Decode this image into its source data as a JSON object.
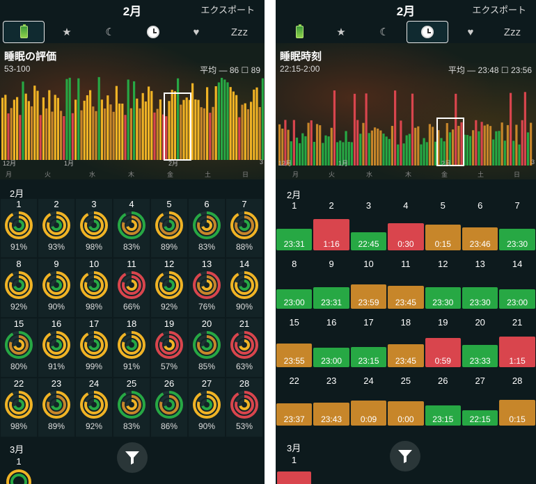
{
  "left": {
    "header": {
      "month": "2月",
      "export": "エクスポート"
    },
    "tabs": [
      {
        "name": "battery-icon",
        "label": ""
      },
      {
        "name": "star-icon",
        "label": "★"
      },
      {
        "name": "moon-icon",
        "label": "☾"
      },
      {
        "name": "clock-icon",
        "label": ""
      },
      {
        "name": "heart-icon",
        "label": "♥"
      },
      {
        "name": "zzz-icon",
        "label": "Zzz"
      }
    ],
    "chart": {
      "title": "睡眠の評価",
      "range": "53-100",
      "avg_label": "平均 — 86",
      "box_value": "89",
      "month_labels": [
        "12月",
        "1月",
        "2月",
        "3"
      ],
      "weekdays": [
        "月",
        "火",
        "水",
        "木",
        "金",
        "土",
        "日"
      ]
    },
    "feb_label": "2月",
    "days": [
      {
        "d": "1",
        "p": "91%"
      },
      {
        "d": "2",
        "p": "93%"
      },
      {
        "d": "3",
        "p": "98%"
      },
      {
        "d": "4",
        "p": "83%"
      },
      {
        "d": "5",
        "p": "89%"
      },
      {
        "d": "6",
        "p": "83%"
      },
      {
        "d": "7",
        "p": "88%"
      },
      {
        "d": "8",
        "p": "92%"
      },
      {
        "d": "9",
        "p": "90%"
      },
      {
        "d": "10",
        "p": "98%"
      },
      {
        "d": "11",
        "p": "66%"
      },
      {
        "d": "12",
        "p": "92%"
      },
      {
        "d": "13",
        "p": "76%"
      },
      {
        "d": "14",
        "p": "90%"
      },
      {
        "d": "15",
        "p": "80%"
      },
      {
        "d": "16",
        "p": "91%"
      },
      {
        "d": "17",
        "p": "99%"
      },
      {
        "d": "18",
        "p": "91%"
      },
      {
        "d": "19",
        "p": "57%"
      },
      {
        "d": "20",
        "p": "85%"
      },
      {
        "d": "21",
        "p": "63%"
      },
      {
        "d": "22",
        "p": "98%"
      },
      {
        "d": "23",
        "p": "89%"
      },
      {
        "d": "24",
        "p": "92%"
      },
      {
        "d": "25",
        "p": "83%"
      },
      {
        "d": "26",
        "p": "86%"
      },
      {
        "d": "27",
        "p": "90%"
      },
      {
        "d": "28",
        "p": "53%"
      }
    ],
    "mar_label": "3月",
    "mar_day": "1"
  },
  "right": {
    "header": {
      "month": "2月",
      "export": "エクスポート"
    },
    "tabs": [
      {
        "name": "battery-icon",
        "label": ""
      },
      {
        "name": "star-icon",
        "label": "★"
      },
      {
        "name": "moon-icon",
        "label": "☾"
      },
      {
        "name": "clock-icon",
        "label": ""
      },
      {
        "name": "heart-icon",
        "label": "♥"
      },
      {
        "name": "zzz-icon",
        "label": "Zzz"
      }
    ],
    "chart": {
      "title": "睡眠時刻",
      "range": "22:15-2:00",
      "avg_label": "平均 — 23:48",
      "box_value": "23:56",
      "month_labels": [
        "12月",
        "1月",
        "2月",
        "3"
      ],
      "weekdays": [
        "月",
        "火",
        "水",
        "木",
        "金",
        "土",
        "日"
      ]
    },
    "feb_label": "2月",
    "days": [
      {
        "d": "1",
        "t": "23:31",
        "c": "green"
      },
      {
        "d": "2",
        "t": "1:16",
        "c": "red"
      },
      {
        "d": "3",
        "t": "22:45",
        "c": "green"
      },
      {
        "d": "4",
        "t": "0:30",
        "c": "red"
      },
      {
        "d": "5",
        "t": "0:15",
        "c": "orange"
      },
      {
        "d": "6",
        "t": "23:46",
        "c": "orange"
      },
      {
        "d": "7",
        "t": "23:30",
        "c": "green"
      },
      {
        "d": "8",
        "t": "23:00",
        "c": "green"
      },
      {
        "d": "9",
        "t": "23:31",
        "c": "green"
      },
      {
        "d": "10",
        "t": "23:59",
        "c": "orange"
      },
      {
        "d": "11",
        "t": "23:45",
        "c": "orange"
      },
      {
        "d": "12",
        "t": "23:30",
        "c": "green"
      },
      {
        "d": "13",
        "t": "23:30",
        "c": "green"
      },
      {
        "d": "14",
        "t": "23:00",
        "c": "green"
      },
      {
        "d": "15",
        "t": "23:55",
        "c": "orange"
      },
      {
        "d": "16",
        "t": "23:00",
        "c": "green"
      },
      {
        "d": "17",
        "t": "23:15",
        "c": "green"
      },
      {
        "d": "18",
        "t": "23:45",
        "c": "orange"
      },
      {
        "d": "19",
        "t": "0:59",
        "c": "red"
      },
      {
        "d": "20",
        "t": "23:33",
        "c": "green"
      },
      {
        "d": "21",
        "t": "1:15",
        "c": "red"
      },
      {
        "d": "22",
        "t": "23:37",
        "c": "orange"
      },
      {
        "d": "23",
        "t": "23:43",
        "c": "orange"
      },
      {
        "d": "24",
        "t": "0:09",
        "c": "orange"
      },
      {
        "d": "25",
        "t": "0:00",
        "c": "orange"
      },
      {
        "d": "26",
        "t": "23:15",
        "c": "green"
      },
      {
        "d": "27",
        "t": "22:15",
        "c": "green"
      },
      {
        "d": "28",
        "t": "0:15",
        "c": "orange"
      }
    ],
    "mar_label": "3月",
    "mar_day": "1",
    "mar_color": "red"
  },
  "colors": {
    "green": "#27a844",
    "orange": "#c7862a",
    "red": "#d9454d",
    "yellow": "#f0b325"
  }
}
